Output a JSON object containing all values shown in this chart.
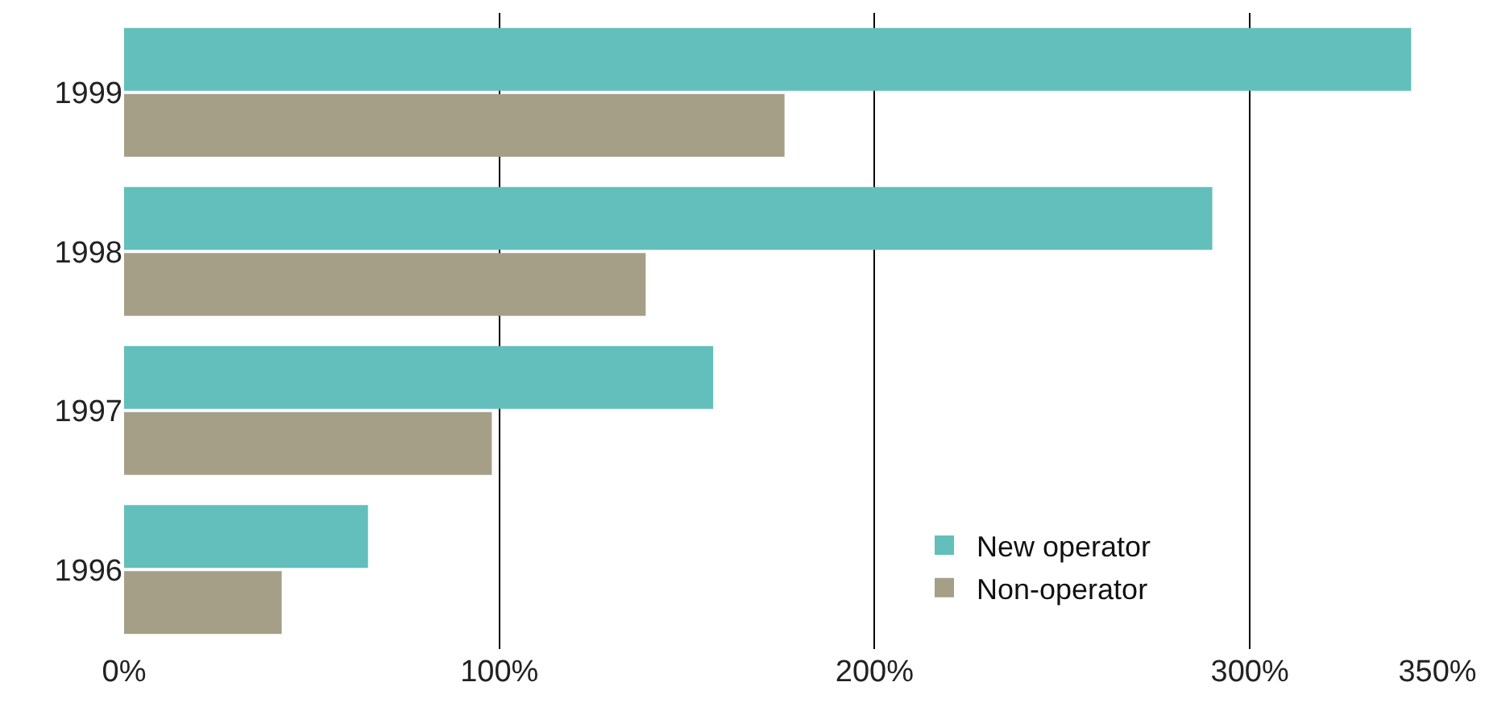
{
  "chart_data": {
    "type": "bar",
    "orientation": "horizontal",
    "categories": [
      "1999",
      "1998",
      "1997",
      "1996"
    ],
    "series": [
      {
        "name": "New operator",
        "color": "#62bfbc",
        "values": [
          343,
          290,
          157,
          65
        ]
      },
      {
        "name": "Non-operator",
        "color": "#a59f88",
        "values": [
          176,
          139,
          98,
          42
        ]
      }
    ],
    "xlim": [
      0,
      350
    ],
    "xticks": [
      {
        "value": 0,
        "label": "0%"
      },
      {
        "value": 100,
        "label": "100%"
      },
      {
        "value": 200,
        "label": "200%"
      },
      {
        "value": 300,
        "label": "300%"
      },
      {
        "value": 350,
        "label": "350%"
      }
    ],
    "grid": "x",
    "legend": "bottom right"
  }
}
